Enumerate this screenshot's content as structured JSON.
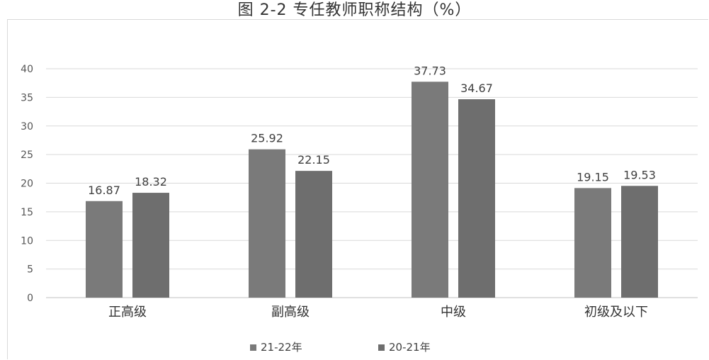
{
  "chart_data": {
    "type": "bar",
    "title": "图 2-2 专任教师职称结构（%）",
    "categories": [
      "正高级",
      "副高级",
      "中级",
      "初级及以下"
    ],
    "series": [
      {
        "name": "21-22年",
        "values": [
          16.87,
          25.92,
          37.73,
          19.15
        ],
        "color": "#7a7a7a"
      },
      {
        "name": "20-21年",
        "values": [
          18.32,
          22.15,
          34.67,
          19.53
        ],
        "color": "#6e6e6e"
      }
    ],
    "data_labels": [
      [
        "16.87",
        "25.92",
        "37.73",
        "19.15"
      ],
      [
        "18.32",
        "22.15",
        "34.67",
        "19.53"
      ]
    ],
    "yticks": [
      "0",
      "5",
      "10",
      "15",
      "20",
      "25",
      "30",
      "35",
      "40"
    ],
    "ylim": [
      0,
      40
    ],
    "xlabel": "",
    "ylabel": "",
    "grid": true,
    "legend_position": "bottom",
    "colors": {
      "grid": "#d9d9d9",
      "axis": "#bfbfbf",
      "text": "#404040"
    }
  }
}
